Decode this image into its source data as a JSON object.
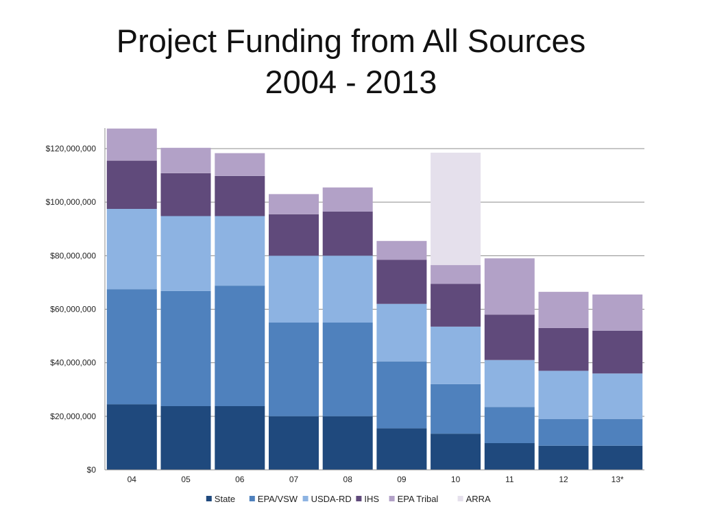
{
  "slide": {
    "title_line1": "Project Funding from All Sources",
    "title_line2": "2004 - 2013"
  },
  "chart_data": {
    "type": "bar",
    "stacked": true,
    "categories": [
      "04",
      "05",
      "06",
      "07",
      "08",
      "09",
      "10",
      "11",
      "12",
      "13*"
    ],
    "y_ticks": [
      "$0",
      "$20,000,000",
      "$40,000,000",
      "$60,000,000",
      "$80,000,000",
      "$100,000,000",
      "$120,000,000"
    ],
    "ylim": [
      0,
      120000000
    ],
    "grid": true,
    "legend_position": "bottom",
    "series": [
      {
        "name": "State",
        "color": "#1F497D",
        "values": [
          24500000,
          23800000,
          23800000,
          20000000,
          20000000,
          15500000,
          13500000,
          10000000,
          9000000,
          9000000
        ]
      },
      {
        "name": "EPA/VSW",
        "color": "#4F81BD",
        "values": [
          43000000,
          43000000,
          45000000,
          35000000,
          35000000,
          25000000,
          18500000,
          13500000,
          10000000,
          10000000
        ]
      },
      {
        "name": "USDA-RD",
        "color": "#8DB3E2",
        "values": [
          30000000,
          28000000,
          26000000,
          25000000,
          25000000,
          21500000,
          21500000,
          17500000,
          18000000,
          17000000
        ]
      },
      {
        "name": "IHS",
        "color": "#604A7B",
        "values": [
          18000000,
          16000000,
          15000000,
          15500000,
          16500000,
          16500000,
          16000000,
          17000000,
          16000000,
          16000000
        ]
      },
      {
        "name": "EPA Tribal",
        "color": "#B2A1C7",
        "values": [
          12000000,
          9500000,
          8500000,
          7500000,
          9000000,
          7000000,
          7000000,
          21000000,
          13500000,
          13500000
        ]
      },
      {
        "name": "ARRA",
        "color": "#E5E0EC",
        "values": [
          0,
          0,
          0,
          0,
          0,
          0,
          42000000,
          0,
          0,
          0
        ]
      }
    ]
  }
}
